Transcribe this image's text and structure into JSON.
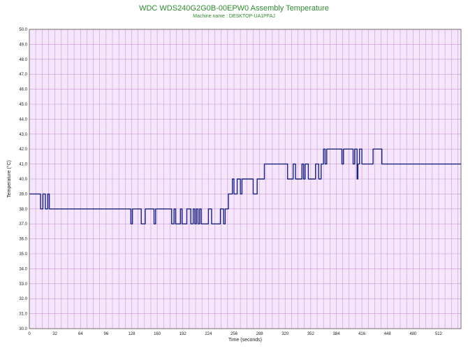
{
  "chart_data": {
    "type": "line",
    "title": "WDC WDS240G2G0B-00EPW0 Assembly Temperature",
    "subtitle": "Machine name : DESKTOP-UA1PFAJ",
    "xlabel": "Time (seconds)",
    "ylabel": "Temperature (°C)",
    "xlim": [
      0,
      540
    ],
    "ylim": [
      30.0,
      50.0
    ],
    "x_ticks": [
      0,
      32,
      64,
      96,
      128,
      160,
      192,
      224,
      256,
      288,
      320,
      352,
      384,
      416,
      448,
      480,
      512
    ],
    "x_tick_labels": [
      "0",
      "32",
      "64",
      "96",
      "128",
      "160",
      "192",
      "224",
      "256",
      "288",
      "320",
      "352",
      "384",
      "416",
      "448",
      "480",
      "512"
    ],
    "y_ticks": [
      30.0,
      31.0,
      32.0,
      33.0,
      34.0,
      35.0,
      36.0,
      37.0,
      38.0,
      39.0,
      40.0,
      41.0,
      42.0,
      43.0,
      44.0,
      45.0,
      46.0,
      47.0,
      48.0,
      49.0,
      50.0
    ],
    "y_tick_labels": [
      "30.0",
      "31.0",
      "32.0",
      "33.0",
      "34.0",
      "35.0",
      "36.0",
      "37.0",
      "38.0",
      "39.0",
      "40.0",
      "41.0",
      "42.0",
      "43.0",
      "44.0",
      "45.0",
      "46.0",
      "47.0",
      "48.0",
      "49.0",
      "50.0"
    ],
    "grid": true,
    "legend": "none",
    "colors": {
      "line": "#1a237e",
      "plot_background": "#f6e6fc",
      "grid": "#c79ad4",
      "title": "#2e8b2e"
    },
    "series": [
      {
        "values_xy": [
          [
            0,
            39
          ],
          [
            14,
            39
          ],
          [
            14,
            38
          ],
          [
            17,
            38
          ],
          [
            17,
            39
          ],
          [
            20,
            39
          ],
          [
            20,
            38
          ],
          [
            23,
            38
          ],
          [
            23,
            39
          ],
          [
            25,
            39
          ],
          [
            25,
            38
          ],
          [
            127,
            38
          ],
          [
            127,
            37
          ],
          [
            129,
            37
          ],
          [
            129,
            38
          ],
          [
            140,
            38
          ],
          [
            140,
            37
          ],
          [
            145,
            37
          ],
          [
            145,
            38
          ],
          [
            156,
            38
          ],
          [
            156,
            37
          ],
          [
            158,
            37
          ],
          [
            158,
            38
          ],
          [
            178,
            38
          ],
          [
            178,
            37
          ],
          [
            181,
            37
          ],
          [
            181,
            38
          ],
          [
            183,
            38
          ],
          [
            183,
            37
          ],
          [
            189,
            37
          ],
          [
            189,
            38
          ],
          [
            191,
            38
          ],
          [
            191,
            37
          ],
          [
            197,
            37
          ],
          [
            197,
            38
          ],
          [
            202,
            38
          ],
          [
            202,
            37
          ],
          [
            205,
            37
          ],
          [
            205,
            38
          ],
          [
            207,
            38
          ],
          [
            207,
            37
          ],
          [
            209,
            37
          ],
          [
            209,
            38
          ],
          [
            211,
            38
          ],
          [
            211,
            37
          ],
          [
            213,
            37
          ],
          [
            213,
            38
          ],
          [
            215,
            38
          ],
          [
            215,
            37
          ],
          [
            224,
            37
          ],
          [
            224,
            38
          ],
          [
            228,
            38
          ],
          [
            228,
            37
          ],
          [
            239,
            37
          ],
          [
            239,
            38
          ],
          [
            243,
            38
          ],
          [
            243,
            37
          ],
          [
            245,
            37
          ],
          [
            245,
            38
          ],
          [
            249,
            38
          ],
          [
            249,
            39
          ],
          [
            254,
            39
          ],
          [
            254,
            40
          ],
          [
            256,
            40
          ],
          [
            256,
            39
          ],
          [
            260,
            39
          ],
          [
            260,
            40
          ],
          [
            264,
            40
          ],
          [
            264,
            39
          ],
          [
            266,
            39
          ],
          [
            266,
            40
          ],
          [
            280,
            40
          ],
          [
            280,
            39
          ],
          [
            285,
            39
          ],
          [
            285,
            40
          ],
          [
            294,
            40
          ],
          [
            294,
            41
          ],
          [
            323,
            41
          ],
          [
            323,
            40
          ],
          [
            330,
            40
          ],
          [
            330,
            41
          ],
          [
            333,
            41
          ],
          [
            333,
            40
          ],
          [
            341,
            40
          ],
          [
            341,
            41
          ],
          [
            343,
            41
          ],
          [
            343,
            40
          ],
          [
            345,
            40
          ],
          [
            345,
            41
          ],
          [
            349,
            41
          ],
          [
            349,
            40
          ],
          [
            358,
            40
          ],
          [
            358,
            41
          ],
          [
            362,
            41
          ],
          [
            362,
            40
          ],
          [
            365,
            40
          ],
          [
            365,
            41
          ],
          [
            368,
            41
          ],
          [
            368,
            42
          ],
          [
            370,
            42
          ],
          [
            370,
            41
          ],
          [
            372,
            41
          ],
          [
            372,
            42
          ],
          [
            391,
            42
          ],
          [
            391,
            41
          ],
          [
            393,
            41
          ],
          [
            393,
            42
          ],
          [
            405,
            42
          ],
          [
            405,
            41
          ],
          [
            407,
            41
          ],
          [
            407,
            42
          ],
          [
            410,
            42
          ],
          [
            410,
            40
          ],
          [
            411,
            40
          ],
          [
            411,
            41
          ],
          [
            413,
            41
          ],
          [
            413,
            42
          ],
          [
            416,
            42
          ],
          [
            416,
            41
          ],
          [
            430,
            41
          ],
          [
            430,
            42
          ],
          [
            441,
            42
          ],
          [
            441,
            41
          ],
          [
            540,
            41
          ]
        ]
      }
    ]
  }
}
